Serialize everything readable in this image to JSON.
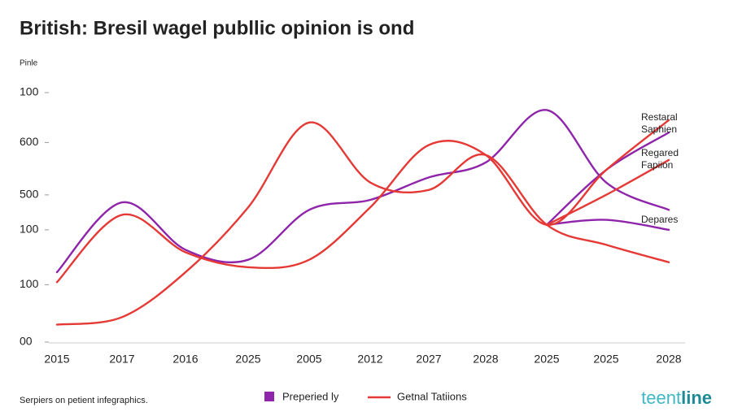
{
  "chart_data": {
    "type": "line",
    "title": "British: Bresil wagel publlic opinion is ond",
    "y_label": "Pinle",
    "categories": [
      "2015",
      "2017",
      "2016",
      "2025",
      "2005",
      "2012",
      "2027",
      "2028",
      "2025",
      "2025",
      "2028"
    ],
    "ylim": [
      0,
      100
    ],
    "yticks": [
      100,
      {
        "value": 80,
        "label": "600"
      },
      {
        "value": 59,
        "label": "500"
      },
      {
        "value": 45,
        "label": "100"
      },
      {
        "value": 23,
        "label": "100"
      },
      {
        "value": 0,
        "label": "00"
      }
    ],
    "series": [
      {
        "color": "#8e24aa",
        "values": [
          28,
          56,
          37,
          33,
          53,
          57,
          66,
          72,
          93,
          64,
          53
        ]
      },
      {
        "color": "#8e24aa",
        "values": [
          null,
          null,
          null,
          null,
          null,
          null,
          null,
          null,
          47,
          49,
          45
        ]
      },
      {
        "color": "#8e24aa",
        "values": [
          null,
          null,
          null,
          null,
          null,
          null,
          null,
          null,
          47,
          69,
          84
        ]
      },
      {
        "color": "#e53935",
        "values": [
          7,
          10,
          28,
          54,
          88,
          64,
          61,
          75,
          47,
          39,
          32
        ]
      },
      {
        "color": "#e53935",
        "values": [
          24,
          51,
          36,
          30,
          33,
          54,
          79,
          75,
          47,
          69,
          89
        ]
      },
      {
        "color": "#e53935",
        "values": [
          null,
          null,
          null,
          null,
          null,
          null,
          null,
          null,
          47,
          59,
          73
        ]
      }
    ],
    "annotations": [
      "Restaral",
      "Saphien",
      "Regared",
      "Fapiion",
      "Depares"
    ],
    "legend": [
      {
        "name": "Preperied ly",
        "color": "#8e24aa"
      },
      {
        "name": "Getnal Tatiions",
        "color": "#e53935"
      }
    ],
    "footer": "Serpiers on petient infegraphics.",
    "brand": [
      "teent",
      "line"
    ]
  }
}
